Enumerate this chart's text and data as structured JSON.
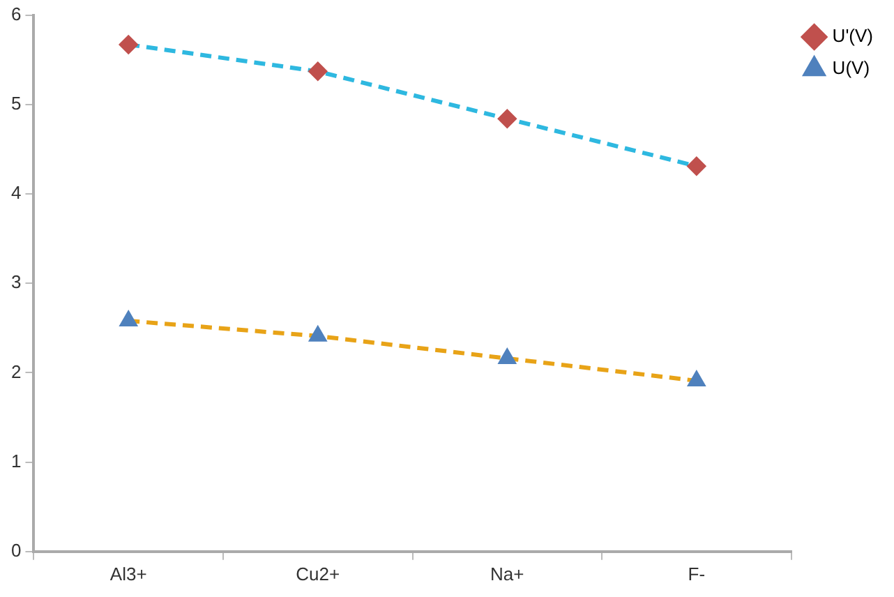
{
  "chart_data": {
    "type": "line",
    "categories": [
      "Al3+",
      "Cu2+",
      "Na+",
      "F-"
    ],
    "series": [
      {
        "name": "U'(V)",
        "color": "#2eb8e0",
        "colors": [
          "#c0504d",
          "#c0504d",
          "#c0504d",
          "#c0504d"
        ],
        "marker": "diamond",
        "values": [
          5.67,
          5.37,
          4.84,
          4.31
        ]
      },
      {
        "name": "U(V)",
        "color": "#e8a317",
        "colors": [
          "#4f81bd",
          "#4f81bd",
          "#4f81bd",
          "#4f81bd"
        ],
        "marker": "triangle",
        "values": [
          2.58,
          2.41,
          2.16,
          1.91
        ]
      }
    ],
    "ylim": [
      0,
      6
    ],
    "yticks": [
      0,
      1,
      2,
      3,
      4,
      5,
      6
    ],
    "grid": false,
    "legend": "top right",
    "line_style": "dashed"
  }
}
